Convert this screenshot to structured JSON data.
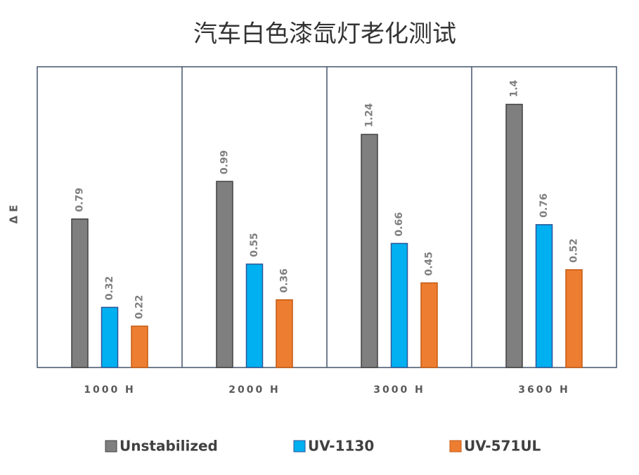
{
  "chart_data": {
    "type": "bar",
    "title": "汽车白色漆氙灯老化测试",
    "y_label": "Δ E",
    "categories": [
      "1000 H",
      "2000 H",
      "3000 H",
      "3600 H"
    ],
    "series": [
      {
        "name": "Unstabilized",
        "color": "#7f7f7f",
        "values": [
          0.79,
          0.99,
          1.24,
          1.4
        ]
      },
      {
        "name": "UV-1130",
        "color": "#00b0f0",
        "values": [
          0.32,
          0.55,
          0.66,
          0.76
        ]
      },
      {
        "name": "UV-571UL",
        "color": "#ed7d31",
        "values": [
          0.22,
          0.36,
          0.45,
          0.52
        ]
      }
    ],
    "ylim": [
      0,
      1.6
    ],
    "legend": "bottom"
  }
}
